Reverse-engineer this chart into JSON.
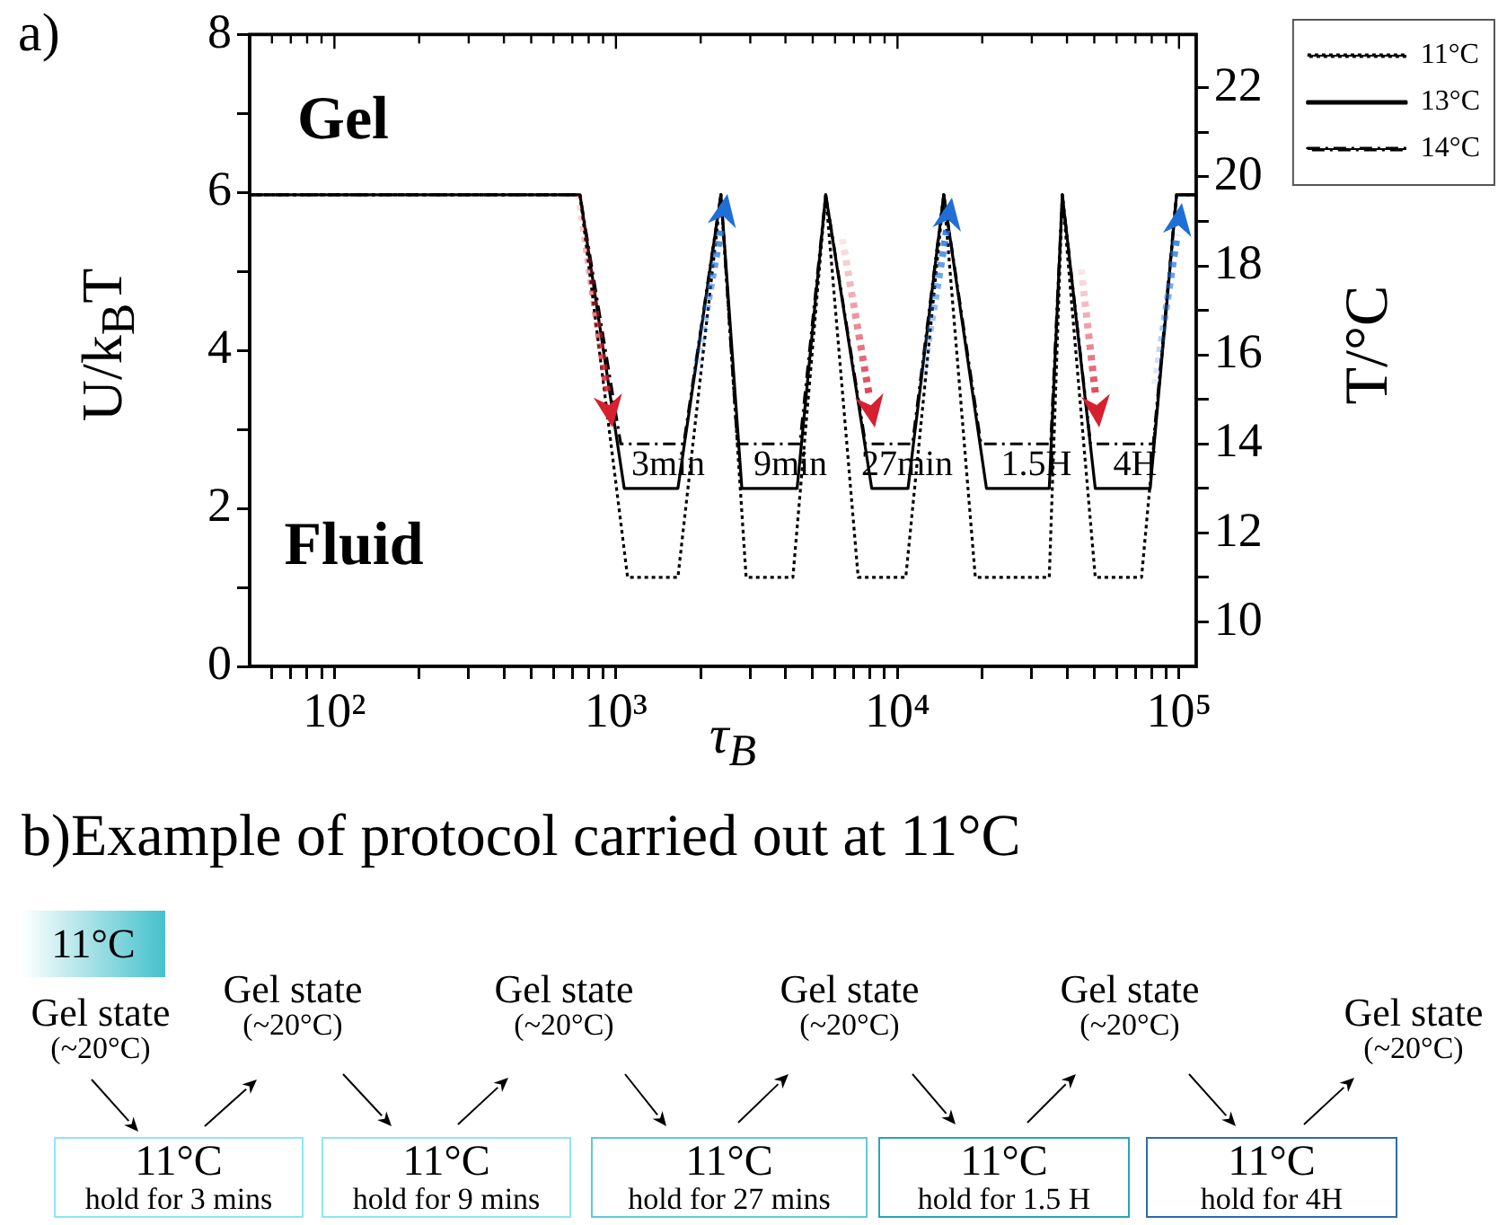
{
  "chart_data": [
    {
      "type": "line",
      "title": "a)",
      "xlabel": "τ$_{B}$",
      "ylabel": "U/k$_{B}$T",
      "y2label": "T/°C",
      "log": "x",
      "legend": "top right",
      "xlim": [
        50,
        115000
      ],
      "xticks": [
        {
          "value": 60,
          "label": null
        },
        {
          "value": 70,
          "label": null
        },
        {
          "value": 80,
          "label": null
        },
        {
          "value": 90,
          "label": null
        },
        {
          "value": 100,
          "label": "10²"
        },
        {
          "value": 200,
          "label": null
        },
        {
          "value": 300,
          "label": null
        },
        {
          "value": 400,
          "label": null
        },
        {
          "value": 500,
          "label": null
        },
        {
          "value": 600,
          "label": null
        },
        {
          "value": 700,
          "label": null
        },
        {
          "value": 800,
          "label": null
        },
        {
          "value": 900,
          "label": null
        },
        {
          "value": 1000,
          "label": "10³"
        },
        {
          "value": 2000,
          "label": null
        },
        {
          "value": 3000,
          "label": null
        },
        {
          "value": 4000,
          "label": null
        },
        {
          "value": 5000,
          "label": null
        },
        {
          "value": 6000,
          "label": null
        },
        {
          "value": 7000,
          "label": null
        },
        {
          "value": 8000,
          "label": null
        },
        {
          "value": 9000,
          "label": null
        },
        {
          "value": 10000,
          "label": "10⁴"
        },
        {
          "value": 20000,
          "label": null
        },
        {
          "value": 30000,
          "label": null
        },
        {
          "value": 40000,
          "label": null
        },
        {
          "value": 50000,
          "label": null
        },
        {
          "value": 60000,
          "label": null
        },
        {
          "value": 70000,
          "label": null
        },
        {
          "value": 80000,
          "label": null
        },
        {
          "value": 90000,
          "label": null
        },
        {
          "value": 100000,
          "label": "10⁵"
        }
      ],
      "ylim": [
        0,
        8
      ],
      "yticks": [
        0,
        {
          "value": 1,
          "label": null
        },
        2,
        {
          "value": 3,
          "label": null
        },
        4,
        {
          "value": 5,
          "label": null
        },
        6,
        {
          "value": 7,
          "label": null
        },
        8
      ],
      "y2lim": [
        9,
        23.2
      ],
      "y2ticks": [
        10,
        {
          "value": 11,
          "label": null
        },
        12,
        {
          "value": 13,
          "label": null
        },
        14,
        {
          "value": 15,
          "label": null
        },
        16,
        {
          "value": 17,
          "label": null
        },
        18,
        {
          "value": 19,
          "label": null
        },
        20,
        {
          "value": 21,
          "label": null
        },
        22
      ],
      "series": [
        {
          "name": "11°C",
          "color": "#000000",
          "axis": "y2",
          "line_style": "dotted",
          "x": [
            50,
            745,
            1100,
            1660,
            2360,
            2900,
            4250,
            5560,
            7250,
            10700,
            14600,
            18900,
            34600,
            38500,
            50400,
            73600,
            98000,
            115000
          ],
          "values": [
            19.6,
            19.6,
            11,
            11,
            19.6,
            11,
            11,
            19.6,
            11,
            11,
            19.6,
            11,
            11,
            19.6,
            11,
            11,
            19.6,
            19.6
          ]
        },
        {
          "name": "13°C",
          "color": "#000000",
          "axis": "y2",
          "line_style": "solid",
          "x": [
            50,
            745,
            1070,
            1660,
            2360,
            2800,
            4400,
            5560,
            8100,
            10900,
            14600,
            20700,
            34600,
            38500,
            50400,
            79000,
            98000,
            115000
          ],
          "values": [
            19.6,
            19.6,
            13,
            13,
            19.6,
            13,
            13,
            19.6,
            13,
            13,
            19.6,
            13,
            13,
            19.6,
            13,
            13,
            19.6,
            19.6
          ]
        },
        {
          "name": "14°C",
          "color": "#000000",
          "axis": "y2",
          "line_style": "dashed",
          "x": [
            50,
            745,
            1040,
            1740,
            2360,
            2700,
            4500,
            5560,
            7700,
            11300,
            14600,
            19800,
            35000,
            38500,
            48500,
            81000,
            98000,
            115000
          ],
          "values": [
            19.6,
            19.6,
            14,
            14,
            19.6,
            14,
            14,
            19.6,
            14,
            14,
            19.6,
            14,
            14,
            19.6,
            14,
            14,
            19.6,
            19.6
          ]
        }
      ],
      "annotations": [
        "Gel",
        "Fluid",
        "3min",
        "9min",
        "27min",
        "1.5H",
        "4H"
      ]
    },
    {
      "type": "other",
      "title": "b)Example of protocol carried out at 11°C",
      "annotations": [
        "11°C",
        "Gel state",
        "(~20°C)",
        "11°C",
        "hold for 3 mins",
        "Gel state",
        "(~20°C)",
        "11°C",
        "hold for 9 mins",
        "Gel state",
        "(~20°C)",
        "11°C",
        "hold for 27 mins",
        "Gel state",
        "(~20°C)",
        "11°C",
        "hold for 1.5 H",
        "Gel state",
        "(~20°C)",
        "11°C",
        "hold for 4H",
        "Gel state",
        "(~20°C)"
      ]
    }
  ]
}
